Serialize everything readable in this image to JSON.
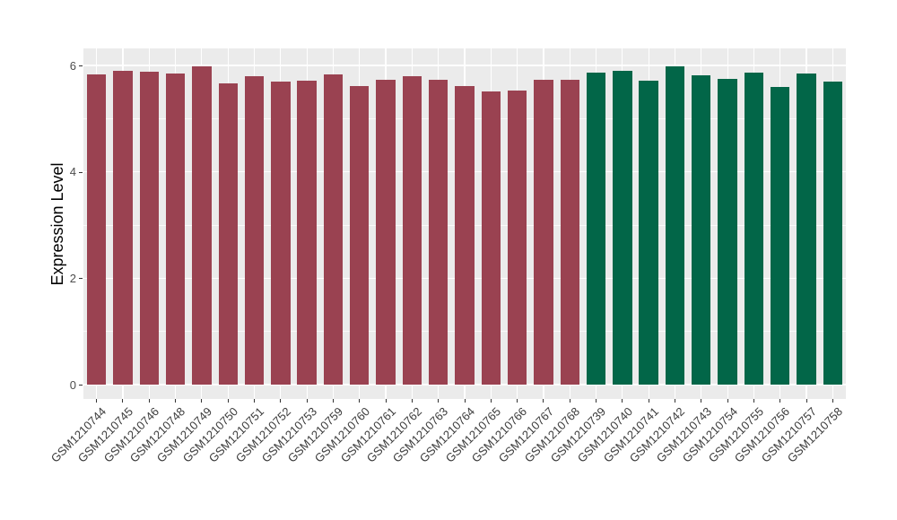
{
  "figure": {
    "background": "#FFFFFF",
    "panel_background": "#EBEBEB",
    "gridline_color": "#FFFFFF"
  },
  "chart_data": {
    "type": "bar",
    "title": "",
    "xlabel": "",
    "ylabel": "Expression Level",
    "ylim": [
      -0.27,
      6.33
    ],
    "yticks_major": [
      0,
      2,
      4,
      6
    ],
    "yticks_minor": [
      1,
      3,
      5
    ],
    "ytick_labels": [
      "0",
      "2",
      "4",
      "6"
    ],
    "grid": true,
    "legend": false,
    "palette": {
      "maroon": "#9A4251",
      "green": "#026648"
    },
    "bars": [
      {
        "label": "GSM1210744",
        "value": 5.83,
        "color": "maroon"
      },
      {
        "label": "GSM1210745",
        "value": 5.9,
        "color": "maroon"
      },
      {
        "label": "GSM1210746",
        "value": 5.88,
        "color": "maroon"
      },
      {
        "label": "GSM1210748",
        "value": 5.85,
        "color": "maroon"
      },
      {
        "label": "GSM1210749",
        "value": 5.98,
        "color": "maroon"
      },
      {
        "label": "GSM1210750",
        "value": 5.66,
        "color": "maroon"
      },
      {
        "label": "GSM1210751",
        "value": 5.8,
        "color": "maroon"
      },
      {
        "label": "GSM1210752",
        "value": 5.7,
        "color": "maroon"
      },
      {
        "label": "GSM1210753",
        "value": 5.72,
        "color": "maroon"
      },
      {
        "label": "GSM1210759",
        "value": 5.83,
        "color": "maroon"
      },
      {
        "label": "GSM1210760",
        "value": 5.62,
        "color": "maroon"
      },
      {
        "label": "GSM1210761",
        "value": 5.73,
        "color": "maroon"
      },
      {
        "label": "GSM1210762",
        "value": 5.8,
        "color": "maroon"
      },
      {
        "label": "GSM1210763",
        "value": 5.73,
        "color": "maroon"
      },
      {
        "label": "GSM1210764",
        "value": 5.61,
        "color": "maroon"
      },
      {
        "label": "GSM1210765",
        "value": 5.51,
        "color": "maroon"
      },
      {
        "label": "GSM1210766",
        "value": 5.52,
        "color": "maroon"
      },
      {
        "label": "GSM1210767",
        "value": 5.73,
        "color": "maroon"
      },
      {
        "label": "GSM1210768",
        "value": 5.73,
        "color": "maroon"
      },
      {
        "label": "GSM1210739",
        "value": 5.87,
        "color": "green"
      },
      {
        "label": "GSM1210740",
        "value": 5.9,
        "color": "green"
      },
      {
        "label": "GSM1210741",
        "value": 5.71,
        "color": "green"
      },
      {
        "label": "GSM1210742",
        "value": 5.98,
        "color": "green"
      },
      {
        "label": "GSM1210743",
        "value": 5.82,
        "color": "green"
      },
      {
        "label": "GSM1210754",
        "value": 5.75,
        "color": "green"
      },
      {
        "label": "GSM1210755",
        "value": 5.87,
        "color": "green"
      },
      {
        "label": "GSM1210756",
        "value": 5.6,
        "color": "green"
      },
      {
        "label": "GSM1210757",
        "value": 5.85,
        "color": "green"
      },
      {
        "label": "GSM1210758",
        "value": 5.7,
        "color": "green"
      }
    ]
  }
}
